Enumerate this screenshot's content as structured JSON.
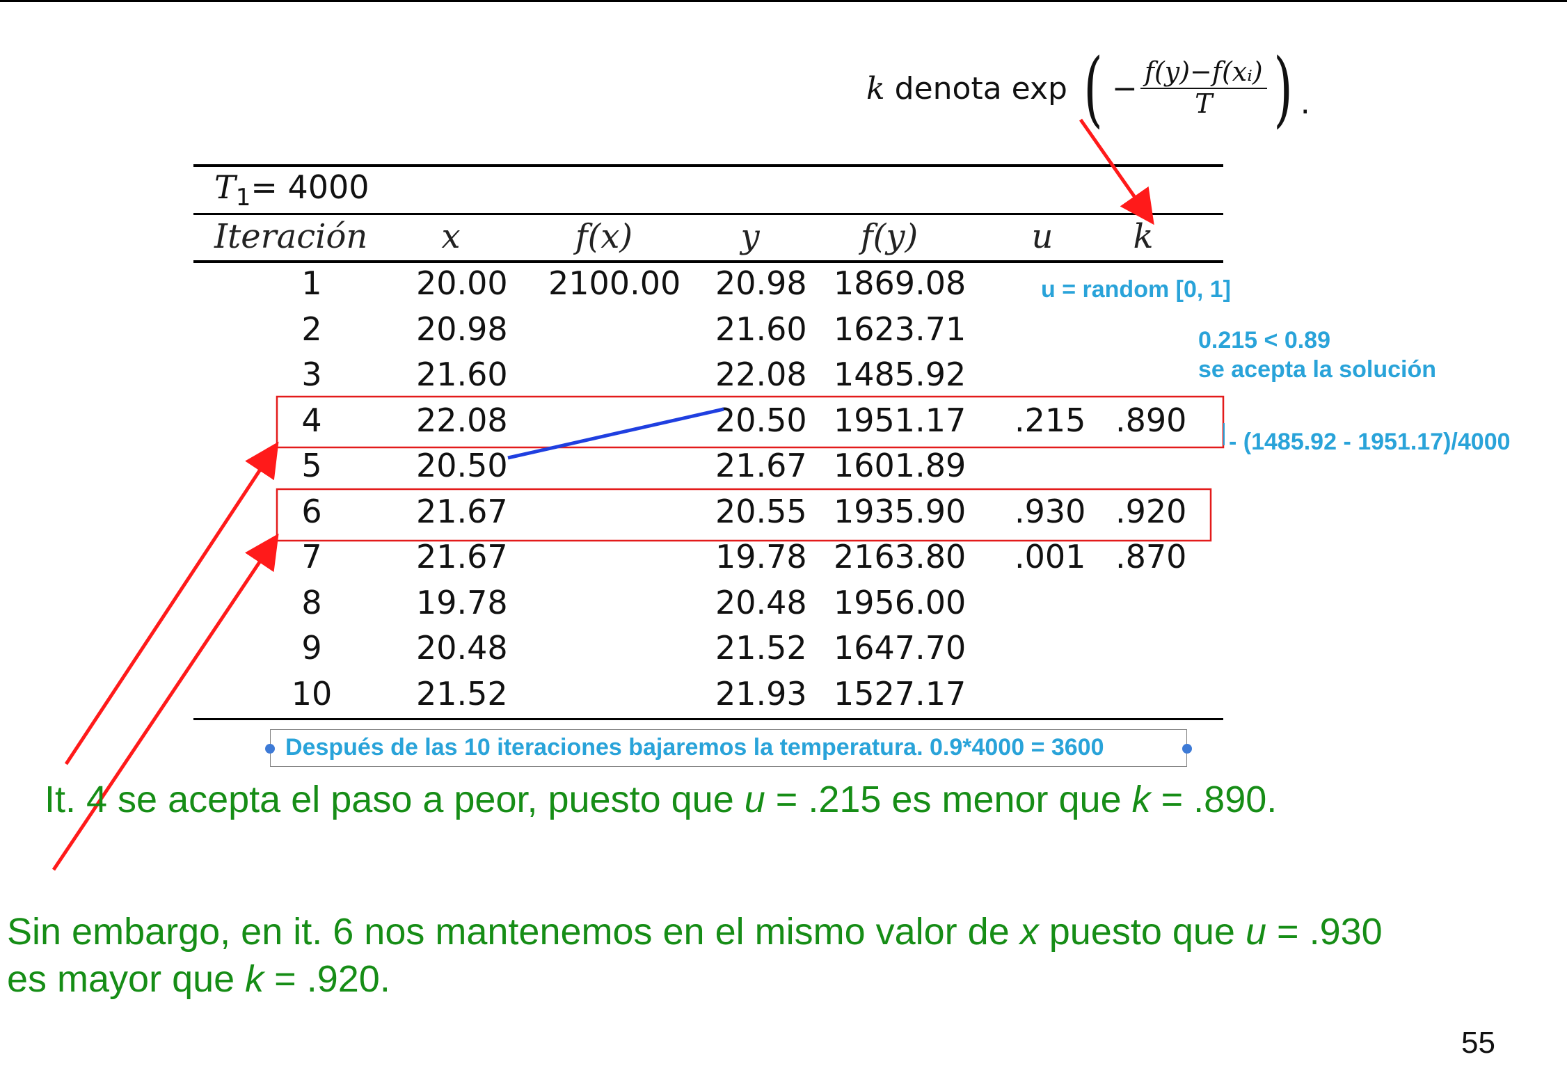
{
  "formula": {
    "k": "k",
    "word": "denota exp",
    "minus": "−",
    "numerator": "f(y)−f(xᵢ)",
    "denominator": "T",
    "period": "."
  },
  "table": {
    "temperature_label": {
      "var": "T",
      "sub": "1",
      "rest": "= 4000"
    },
    "headers": [
      "Iteración",
      "x",
      "f(x)",
      "y",
      "f(y)",
      "u",
      "k"
    ],
    "rows": [
      [
        "1",
        "20.00",
        "2100.00",
        "20.98",
        "1869.08",
        "",
        ""
      ],
      [
        "2",
        "20.98",
        "",
        "21.60",
        "1623.71",
        "",
        ""
      ],
      [
        "3",
        "21.60",
        "",
        "22.08",
        "1485.92",
        "",
        ""
      ],
      [
        "4",
        "22.08",
        "",
        "20.50",
        "1951.17",
        ".215",
        ".890"
      ],
      [
        "5",
        "20.50",
        "",
        "21.67",
        "1601.89",
        "",
        ""
      ],
      [
        "6",
        "21.67",
        "",
        "20.55",
        "1935.90",
        ".930",
        ".920"
      ],
      [
        "7",
        "21.67",
        "",
        "19.78",
        "2163.80",
        ".001",
        ".870"
      ],
      [
        "8",
        "19.78",
        "",
        "20.48",
        "1956.00",
        "",
        ""
      ],
      [
        "9",
        "20.48",
        "",
        "21.52",
        "1647.70",
        "",
        ""
      ],
      [
        "10",
        "21.52",
        "",
        "21.93",
        "1527.17",
        "",
        ""
      ]
    ]
  },
  "annotations": {
    "u_random": "u = random [0, 1]",
    "compare": "0.215 < 0.89",
    "accept": "se acepta la solución",
    "exponent": "- (1485.92 - 1951.17)/4000",
    "bottom_note": "Después de las 10 iteraciones bajaremos la temperatura. 0.9*4000 = 3600"
  },
  "explanation": {
    "line1": {
      "a": "It. 4 se acepta el paso a peor, puesto que ",
      "u": "u",
      "b": " = .215 es menor que ",
      "k": "k",
      "c": " = .890."
    },
    "line2": {
      "a": "Sin embargo, en it. 6 nos mantenemos en el mismo valor de ",
      "x": "x",
      "b": " puesto que ",
      "u": "u",
      "c": " = .930"
    },
    "line3": {
      "a": "es mayor que ",
      "k": "k",
      "b": " = .920."
    }
  },
  "page_number": "55",
  "colors": {
    "annotation": "#29a3d9",
    "green_text": "#168d16",
    "arrow": "#ff1a1a",
    "highlight_box": "#e31b1b",
    "link_line": "#1f3fe0"
  }
}
